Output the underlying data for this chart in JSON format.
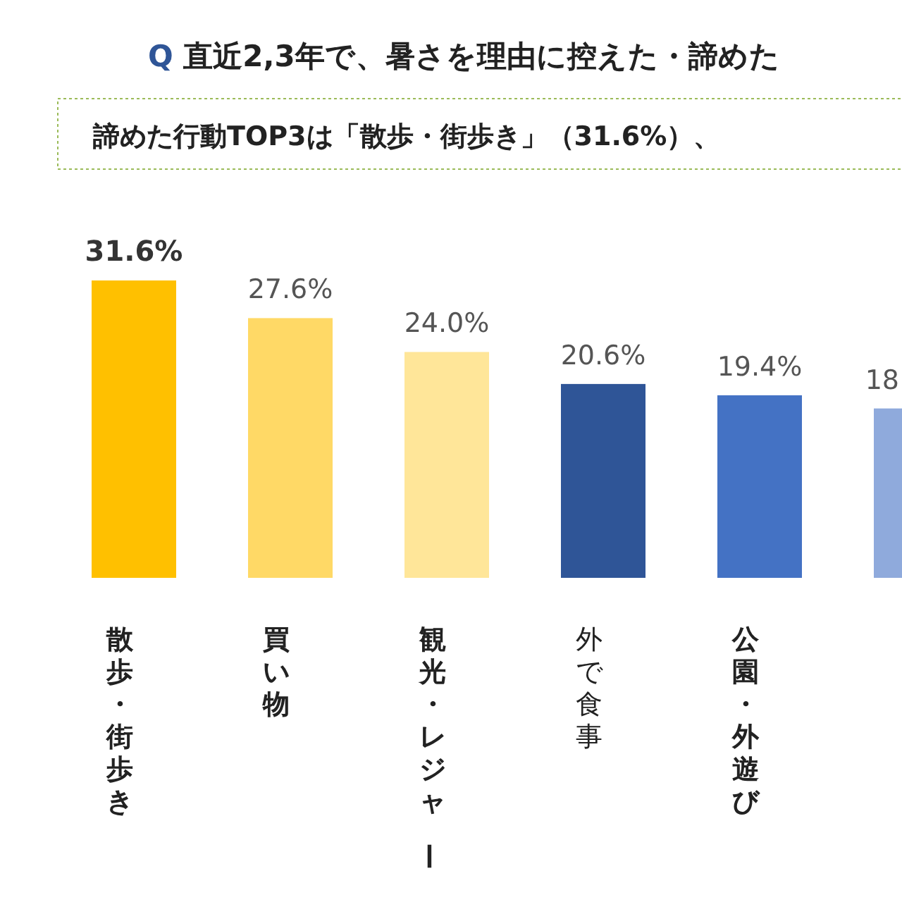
{
  "chart_data": {
    "type": "bar",
    "title": "Q 直近2,3年で、暑さを理由に控えた・諦めた",
    "subtitle": "諦めた行動TOP3は「散歩・街歩き」（31.6%）、",
    "categories": [
      "散歩・街歩き",
      "買い物",
      "観光・レジャー",
      "外で食事",
      "公園・外遊び",
      null
    ],
    "values": [
      31.6,
      27.6,
      24.0,
      20.6,
      19.4,
      18.0
    ],
    "colors": [
      "#ffc000",
      "#ffd966",
      "#ffe699",
      "#2f5597",
      "#4472c4",
      "#8faadc"
    ],
    "value_labels": [
      "31.6%",
      "27.6%",
      "24.0%",
      "20.6%",
      "19.4%",
      "18"
    ],
    "grid": false
  }
}
